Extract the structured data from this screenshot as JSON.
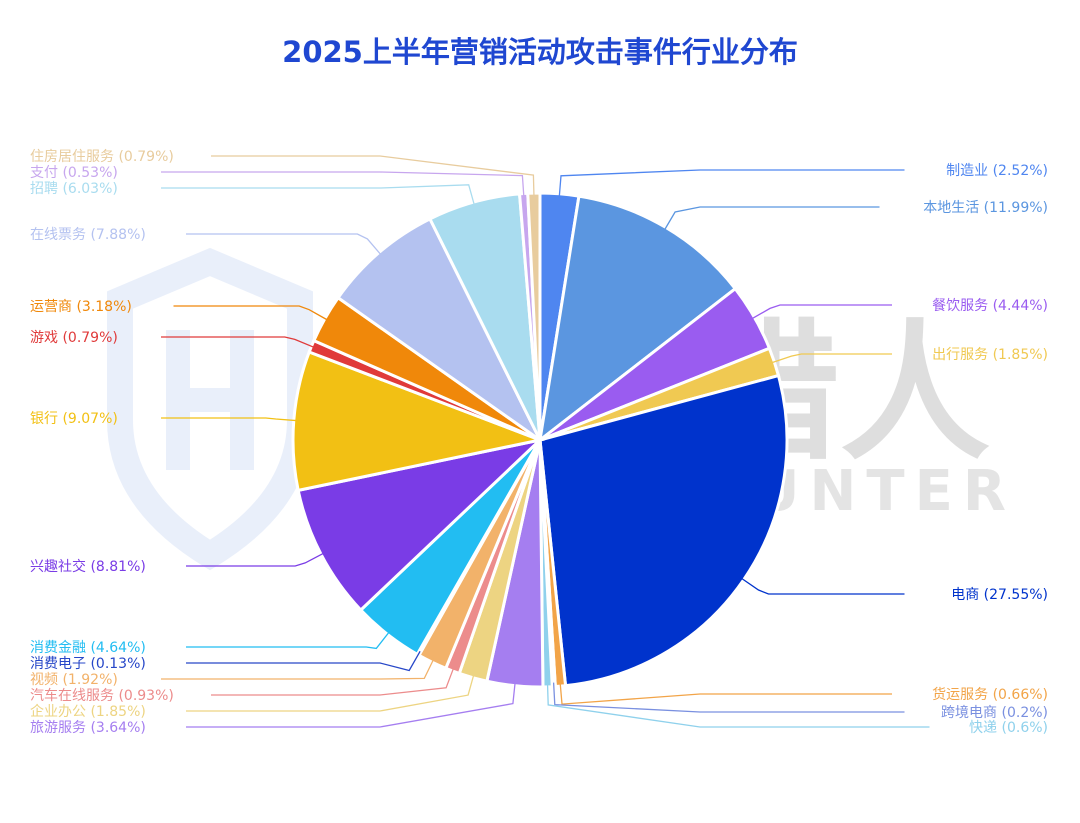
{
  "chart_data": {
    "type": "pie",
    "title": "2025上半年营销活动攻击事件行业分布",
    "slices": [
      {
        "label": "制造业",
        "value": 2.52,
        "color": "#4f86f0"
      },
      {
        "label": "本地生活",
        "value": 11.99,
        "color": "#5b96e0"
      },
      {
        "label": "餐饮服务",
        "value": 4.44,
        "color": "#9a5cf0"
      },
      {
        "label": "出行服务",
        "value": 1.85,
        "color": "#f0c952"
      },
      {
        "label": "电商",
        "value": 27.55,
        "color": "#0033cc"
      },
      {
        "label": "货运服务",
        "value": 0.66,
        "color": "#f2a448"
      },
      {
        "label": "跨境电商",
        "value": 0.2,
        "color": "#7a90e0"
      },
      {
        "label": "快递",
        "value": 0.6,
        "color": "#8fd1ec"
      },
      {
        "label": "旅游服务",
        "value": 3.64,
        "color": "#a57ef0"
      },
      {
        "label": "企业办公",
        "value": 1.85,
        "color": "#edd482"
      },
      {
        "label": "汽车在线服务",
        "value": 0.93,
        "color": "#ec8c8c"
      },
      {
        "label": "视频",
        "value": 1.92,
        "color": "#f2b26a"
      },
      {
        "label": "消费电子",
        "value": 0.13,
        "color": "#2747c8"
      },
      {
        "label": "消费金融",
        "value": 4.64,
        "color": "#22bdf2"
      },
      {
        "label": "兴趣社交",
        "value": 8.81,
        "color": "#7a3ce6"
      },
      {
        "label": "银行",
        "value": 9.07,
        "color": "#f2c014"
      },
      {
        "label": "游戏",
        "value": 0.79,
        "color": "#e03a3a"
      },
      {
        "label": "运营商",
        "value": 3.18,
        "color": "#f0880a"
      },
      {
        "label": "在线票务",
        "value": 7.88,
        "color": "#b4c2f0"
      },
      {
        "label": "招聘",
        "value": 6.03,
        "color": "#a9dcef"
      },
      {
        "label": "支付",
        "value": 0.53,
        "color": "#c7a6ee"
      },
      {
        "label": "住房居住服务",
        "value": 0.79,
        "color": "#e8cc9e"
      }
    ],
    "legend": "none",
    "data_labels": "outside with leader lines"
  },
  "watermark": {
    "line1": "威胁猎人",
    "line2": "THREAT HUNTER"
  },
  "colors": {
    "title": "#1f47d1",
    "watermark": "#b8b8b8",
    "watermark_logo": "#cfdcf5"
  }
}
